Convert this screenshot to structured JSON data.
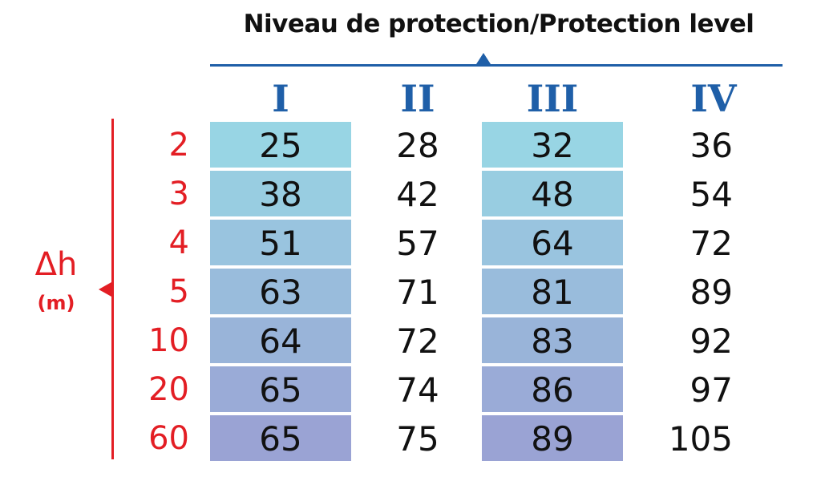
{
  "chart_data": {
    "type": "table",
    "title": "Niveau de protection/Protection level",
    "columns": [
      "I",
      "II",
      "III",
      "IV"
    ],
    "row_header": {
      "label": "Δh",
      "unit": "(m)"
    },
    "rows": [
      {
        "dh": "2",
        "values": [
          "25",
          "28",
          "32",
          "36"
        ]
      },
      {
        "dh": "3",
        "values": [
          "38",
          "42",
          "48",
          "54"
        ]
      },
      {
        "dh": "4",
        "values": [
          "51",
          "57",
          "64",
          "72"
        ]
      },
      {
        "dh": "5",
        "values": [
          "63",
          "71",
          "81",
          "89"
        ]
      },
      {
        "dh": "10",
        "values": [
          "64",
          "72",
          "83",
          "92"
        ]
      },
      {
        "dh": "20",
        "values": [
          "65",
          "74",
          "86",
          "97"
        ]
      },
      {
        "dh": "60",
        "values": [
          "65",
          "75",
          "89",
          "105"
        ]
      }
    ]
  },
  "colors": {
    "axis_blue": "#1f5fa8",
    "axis_red": "#e31e24",
    "shade_top": "#98d5e4",
    "shade_bottom": "#9aa3d4"
  }
}
